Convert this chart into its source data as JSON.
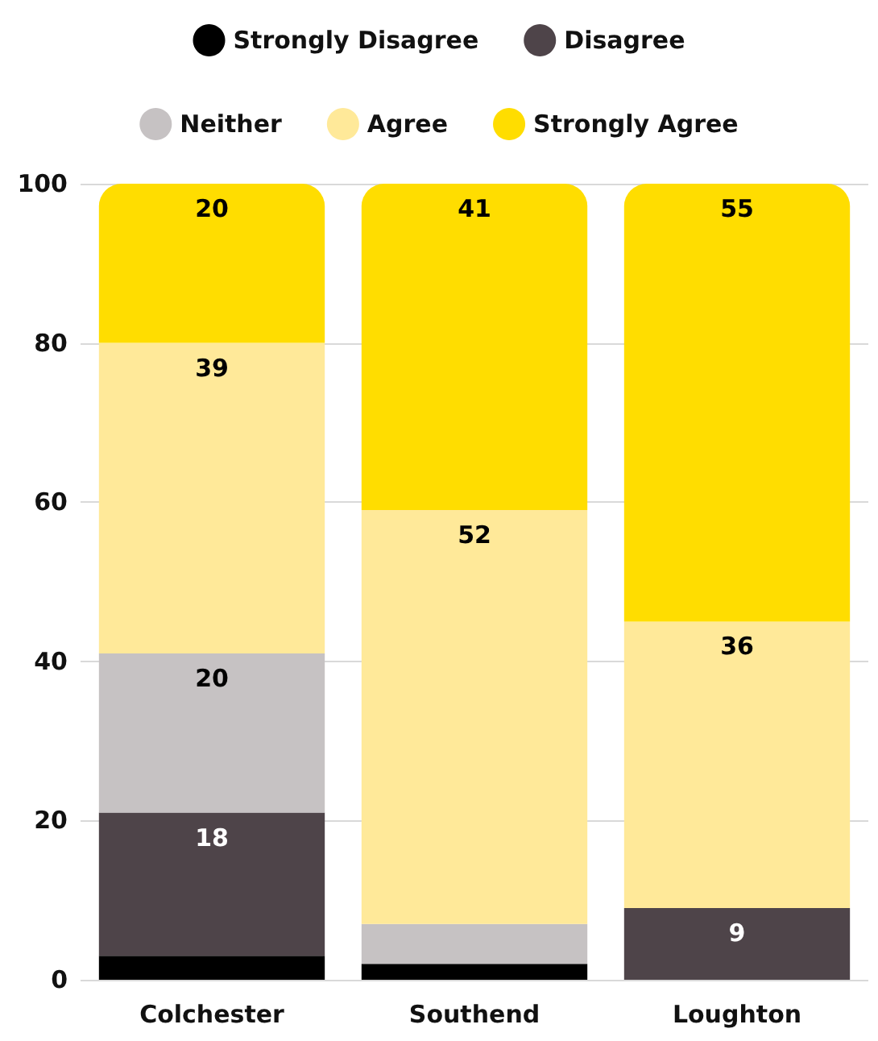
{
  "chart_data": {
    "type": "bar",
    "stacked": true,
    "categories": [
      "Colchester",
      "Southend",
      "Loughton"
    ],
    "series": [
      {
        "name": "Strongly Disagree",
        "color": "#000000",
        "values": [
          3,
          2,
          0
        ],
        "value_labels": [
          null,
          null,
          null
        ]
      },
      {
        "name": "Disagree",
        "color": "#4e4449",
        "values": [
          18,
          0,
          9
        ],
        "value_labels": [
          "18",
          null,
          "9"
        ]
      },
      {
        "name": "Neither",
        "color": "#c6c2c3",
        "values": [
          20,
          5,
          0
        ],
        "value_labels": [
          "20",
          null,
          null
        ]
      },
      {
        "name": "Agree",
        "color": "#ffe999",
        "values": [
          39,
          52,
          36
        ],
        "value_labels": [
          "39",
          "52",
          "36"
        ]
      },
      {
        "name": "Strongly Agree",
        "color": "#ffdd00",
        "values": [
          20,
          41,
          55
        ],
        "value_labels": [
          "20",
          "41",
          "55"
        ]
      }
    ],
    "ylim": [
      0,
      100
    ],
    "yticks": [
      0,
      20,
      40,
      60,
      80,
      100
    ],
    "grid": "y",
    "legend": "top"
  }
}
